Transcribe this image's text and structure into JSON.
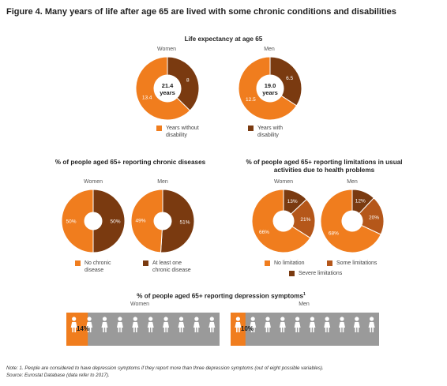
{
  "figure_title": "Figure 4. Many years of life after age 65 are lived with some chronic conditions and disabilities",
  "colors": {
    "orange": "#f07d1e",
    "brown": "#7a3a10",
    "mid_brown": "#b5571a",
    "gray": "#9a9a9a"
  },
  "icons": [
    "person-icon"
  ],
  "chart_data": [
    {
      "type": "pie",
      "title": "Life expectancy at age 65",
      "groups": [
        {
          "name": "Women",
          "center_value": "21.4",
          "center_unit": "years",
          "slices": [
            {
              "label": "Years without disability",
              "value": 13.4,
              "text": "13.4"
            },
            {
              "label": "Years with disability",
              "value": 8,
              "text": "8"
            }
          ]
        },
        {
          "name": "Men",
          "center_value": "19.0",
          "center_unit": "years",
          "slices": [
            {
              "label": "Years without disability",
              "value": 12.5,
              "text": "12.5"
            },
            {
              "label": "Years with disability",
              "value": 6.5,
              "text": "6.5"
            }
          ]
        }
      ],
      "legend": [
        "Years without disability",
        "Years with disability"
      ]
    },
    {
      "type": "pie",
      "title": "% of people aged 65+ reporting chronic diseases",
      "groups": [
        {
          "name": "Women",
          "slices": [
            {
              "label": "No chronic disease",
              "value": 50,
              "text": "50%"
            },
            {
              "label": "At least one chronic disease",
              "value": 50,
              "text": "50%"
            }
          ]
        },
        {
          "name": "Men",
          "slices": [
            {
              "label": "No chronic disease",
              "value": 49,
              "text": "49%"
            },
            {
              "label": "At least one chronic disease",
              "value": 51,
              "text": "51%"
            }
          ]
        }
      ],
      "legend": [
        "No chronic disease",
        "At least one chronic disease"
      ]
    },
    {
      "type": "pie",
      "title": "% of people aged 65+ reporting limitations in usual activities due to health problems",
      "groups": [
        {
          "name": "Women",
          "slices": [
            {
              "label": "No limitation",
              "value": 66,
              "text": "66%"
            },
            {
              "label": "Some limitations",
              "value": 21,
              "text": "21%"
            },
            {
              "label": "Severe limitations",
              "value": 13,
              "text": "13%"
            }
          ]
        },
        {
          "name": "Men",
          "slices": [
            {
              "label": "No limitation",
              "value": 68,
              "text": "68%"
            },
            {
              "label": "Some limitations",
              "value": 20,
              "text": "20%"
            },
            {
              "label": "Severe limitations",
              "value": 12,
              "text": "12%"
            }
          ]
        }
      ],
      "legend": [
        "No limitation",
        "Some limitations",
        "Severe limitations"
      ]
    },
    {
      "type": "bar",
      "title": "% of people aged 65+ reporting depression symptoms",
      "title_sup": "1",
      "groups": [
        {
          "name": "Women",
          "value": 14,
          "text": "14%"
        },
        {
          "name": "Men",
          "value": 10,
          "text": "10%"
        }
      ]
    }
  ],
  "note": "Note: 1. People are considered to have depression symptoms if they report more than three depression symptoms (out of eight possible variables).",
  "source": "Source: Eurostat Database (data refer to 2017)."
}
